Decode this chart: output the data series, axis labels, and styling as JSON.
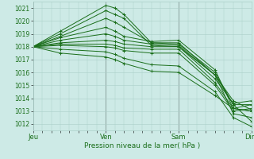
{
  "xlabel": "Pression niveau de la mer( hPa )",
  "ylim": [
    1011.5,
    1021.5
  ],
  "yticks": [
    1012,
    1013,
    1014,
    1015,
    1016,
    1017,
    1018,
    1019,
    1020,
    1021
  ],
  "xtick_labels": [
    "Jeu",
    "Ven",
    "Sam",
    "Dim"
  ],
  "xtick_positions": [
    0,
    8,
    16,
    24
  ],
  "bg_color": "#cdeae6",
  "grid_color": "#aacfc8",
  "line_color": "#1a6e1a",
  "detail_lines": [
    [
      1018.0,
      1019.2,
      1021.2,
      1021.0,
      1020.5,
      1018.3,
      1018.2,
      1016.0,
      1013.5,
      1012.2
    ],
    [
      1018.0,
      1019.0,
      1020.8,
      1020.5,
      1020.2,
      1018.1,
      1018.0,
      1015.8,
      1013.8,
      1013.1
    ],
    [
      1018.0,
      1018.8,
      1020.2,
      1019.9,
      1019.5,
      1018.3,
      1018.3,
      1015.8,
      1013.5,
      1013.5
    ],
    [
      1018.0,
      1018.7,
      1019.5,
      1019.2,
      1018.8,
      1018.4,
      1018.5,
      1016.2,
      1013.2,
      1013.0
    ],
    [
      1018.0,
      1018.5,
      1019.0,
      1018.8,
      1018.5,
      1018.2,
      1018.1,
      1015.8,
      1012.8,
      1012.5
    ],
    [
      1018.0,
      1018.3,
      1018.5,
      1018.4,
      1018.2,
      1018.0,
      1018.0,
      1015.5,
      1013.6,
      1013.8
    ],
    [
      1018.0,
      1018.2,
      1018.2,
      1018.1,
      1017.9,
      1017.8,
      1017.8,
      1015.2,
      1013.2,
      1013.0
    ],
    [
      1018.0,
      1018.1,
      1018.0,
      1017.9,
      1017.7,
      1017.5,
      1017.5,
      1015.0,
      1013.0,
      1013.2
    ],
    [
      1018.0,
      1017.8,
      1017.6,
      1017.4,
      1017.1,
      1016.6,
      1016.5,
      1014.5,
      1012.5,
      1011.8
    ],
    [
      1018.0,
      1017.5,
      1017.2,
      1017.0,
      1016.7,
      1016.1,
      1016.0,
      1014.2,
      1013.2,
      1013.5
    ]
  ],
  "x_detail": [
    0,
    3,
    8,
    9,
    10,
    13,
    16,
    20,
    22,
    24
  ],
  "vline_color": "#555555",
  "vline_positions": [
    0,
    8,
    16,
    24
  ]
}
